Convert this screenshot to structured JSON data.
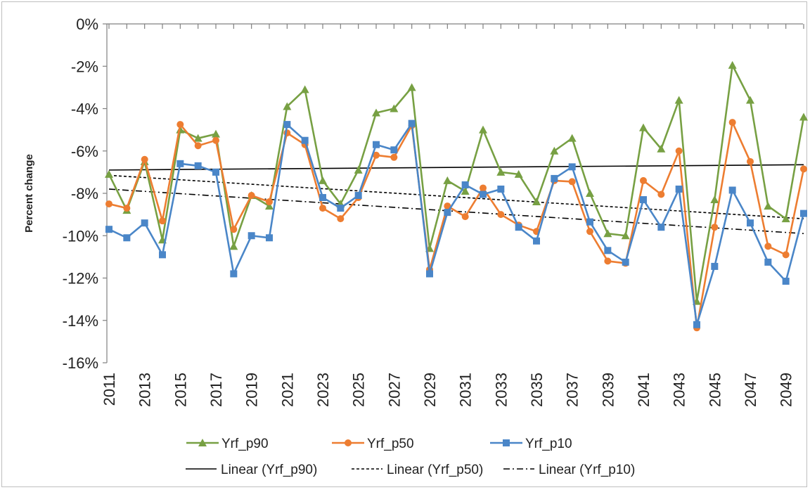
{
  "chart_data": {
    "type": "line",
    "title": "",
    "xlabel": "",
    "ylabel": "Percent change",
    "ylim": [
      -16,
      0
    ],
    "yticks": [
      0,
      -2,
      -4,
      -6,
      -8,
      -10,
      -12,
      -14,
      -16
    ],
    "ytick_labels": [
      "0%",
      "-2%",
      "-4%",
      "-6%",
      "-8%",
      "-10%",
      "-12%",
      "-14%",
      "-16%"
    ],
    "x": [
      2011,
      2012,
      2013,
      2014,
      2015,
      2016,
      2017,
      2018,
      2019,
      2020,
      2021,
      2022,
      2023,
      2024,
      2025,
      2026,
      2027,
      2028,
      2029,
      2030,
      2031,
      2032,
      2033,
      2034,
      2035,
      2036,
      2037,
      2038,
      2039,
      2040,
      2041,
      2042,
      2043,
      2044,
      2045,
      2046,
      2047,
      2048,
      2049,
      2050
    ],
    "xtick_labels": [
      "2011",
      "2013",
      "2015",
      "2017",
      "2019",
      "2021",
      "2023",
      "2025",
      "2027",
      "2029",
      "2031",
      "2033",
      "2035",
      "2037",
      "2039",
      "2041",
      "2043",
      "2045",
      "2047",
      "2049"
    ],
    "grid": false,
    "legend_position": "bottom",
    "series": [
      {
        "name": "Yrf_p90",
        "color": "#77a043",
        "marker": "triangle",
        "values": [
          -7.1,
          -8.8,
          -6.5,
          -10.2,
          -5.0,
          -5.4,
          -5.2,
          -10.5,
          -8.1,
          -8.6,
          -3.9,
          -3.1,
          -7.4,
          -8.5,
          -6.9,
          -4.2,
          -4.0,
          -3.0,
          -10.6,
          -7.4,
          -7.9,
          -5.0,
          -7.0,
          -7.1,
          -8.4,
          -6.0,
          -5.4,
          -8.0,
          -9.9,
          -10.0,
          -4.9,
          -5.9,
          -3.6,
          -13.1,
          -8.3,
          -1.95,
          -3.6,
          -8.6,
          -9.2,
          -4.4
        ]
      },
      {
        "name": "Yrf_p50",
        "color": "#ed7d31",
        "marker": "circle",
        "values": [
          -8.5,
          -8.7,
          -6.4,
          -9.3,
          -4.75,
          -5.75,
          -5.5,
          -9.7,
          -8.1,
          -8.4,
          -5.15,
          -5.7,
          -8.7,
          -9.2,
          -8.2,
          -6.2,
          -6.3,
          -4.8,
          -11.6,
          -8.6,
          -9.1,
          -7.75,
          -9.0,
          -9.5,
          -9.8,
          -7.4,
          -7.45,
          -9.8,
          -11.2,
          -11.3,
          -7.4,
          -8.05,
          -6.0,
          -14.35,
          -9.6,
          -4.65,
          -6.5,
          -10.5,
          -10.9,
          -6.85
        ]
      },
      {
        "name": "Yrf_p10",
        "color": "#4a86c8",
        "marker": "square",
        "values": [
          -9.7,
          -10.1,
          -9.4,
          -10.9,
          -6.6,
          -6.7,
          -7.0,
          -11.8,
          -10.0,
          -10.1,
          -4.75,
          -5.5,
          -8.2,
          -8.7,
          -8.1,
          -5.7,
          -5.95,
          -4.7,
          -11.8,
          -8.9,
          -7.6,
          -8.05,
          -7.8,
          -9.6,
          -10.25,
          -7.3,
          -6.75,
          -9.35,
          -10.7,
          -11.25,
          -8.3,
          -9.6,
          -7.8,
          -14.2,
          -11.45,
          -7.85,
          -9.4,
          -11.25,
          -12.15,
          -8.95
        ]
      }
    ],
    "trendlines": [
      {
        "name": "Linear (Yrf_p90)",
        "color": "#000000",
        "dash": "solid",
        "start": -6.9,
        "end": -6.65
      },
      {
        "name": "Linear (Yrf_p50)",
        "color": "#000000",
        "dash": "dashed",
        "start": -7.15,
        "end": -9.2
      },
      {
        "name": "Linear (Yrf_p10)",
        "color": "#000000",
        "dash": "dashdot",
        "start": -7.8,
        "end": -9.9
      }
    ]
  }
}
